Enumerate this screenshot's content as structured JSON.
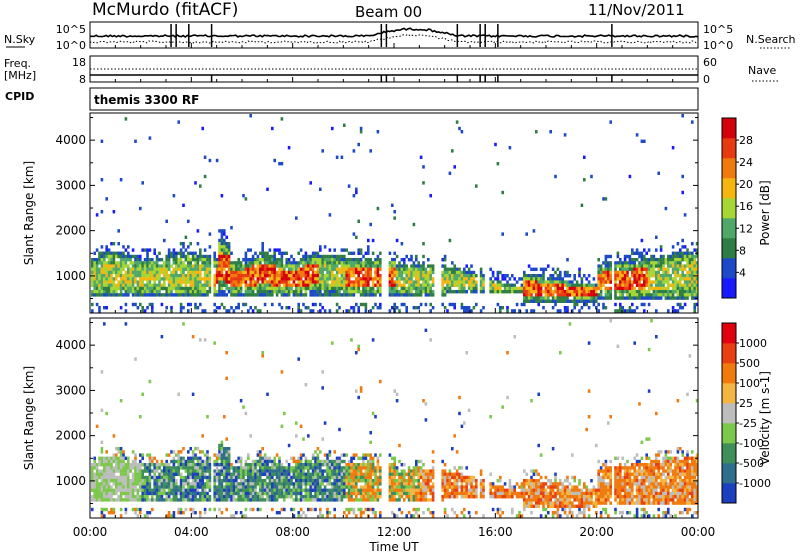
{
  "header": {
    "station": "McMurdo (fitACF)",
    "beam": "Beam 00",
    "date": "11/Nov/2011"
  },
  "noise_panel": {
    "left_label": "N.Sky",
    "left_ticks": [
      "10^5",
      "10^0"
    ],
    "right_ticks": [
      "10^5",
      "10^0"
    ],
    "right_label": "N.Search"
  },
  "freq_panel": {
    "left_label_1": "Freq.",
    "left_label_2": "[MHz]",
    "left_ticks": [
      "18",
      "8"
    ],
    "right_ticks": [
      "60",
      "0"
    ],
    "right_label": "Nave"
  },
  "cpid": {
    "label": "CPID",
    "program": "themis 3300 RF"
  },
  "chart_data": [
    {
      "type": "heatmap",
      "quantity": "Power",
      "ylabel": "Slant Range [km]",
      "ylim": [
        180,
        4600
      ],
      "yticks": [
        "4000",
        "3000",
        "2000",
        "1000"
      ],
      "xlim_hours": [
        0,
        24
      ],
      "colorbar_label": "Power [dB]",
      "colorbar_ticks": [
        "28",
        "24",
        "20",
        "16",
        "12",
        "8",
        "4"
      ],
      "colors": [
        "#1a1aff",
        "#1c49c8",
        "#2e7d44",
        "#4fa86a",
        "#a6d633",
        "#f5b70f",
        "#f07a0d",
        "#e83a10",
        "#d4000c"
      ]
    },
    {
      "type": "heatmap",
      "quantity": "Velocity",
      "ylabel": "Slant Range [km]",
      "ylim": [
        180,
        4600
      ],
      "yticks": [
        "4000",
        "3000",
        "2000",
        "1000"
      ],
      "xlim_hours": [
        0,
        24
      ],
      "colorbar_label": "Velocity [m s-1]",
      "colorbar_ticks": [
        "1000",
        "500",
        "100",
        "25",
        "-25",
        "-100",
        "-500",
        "-1000"
      ],
      "colors": [
        "#1c3fc0",
        "#2f6e8c",
        "#3f8f5a",
        "#7cc84a",
        "#bdbdbd",
        "#f4b542",
        "#f07a0d",
        "#e84010",
        "#e00010"
      ]
    }
  ],
  "xaxis": {
    "ticks": [
      "00:00",
      "04:00",
      "08:00",
      "12:00",
      "16:00",
      "20:00",
      "00:00"
    ],
    "label": "Time UT"
  }
}
